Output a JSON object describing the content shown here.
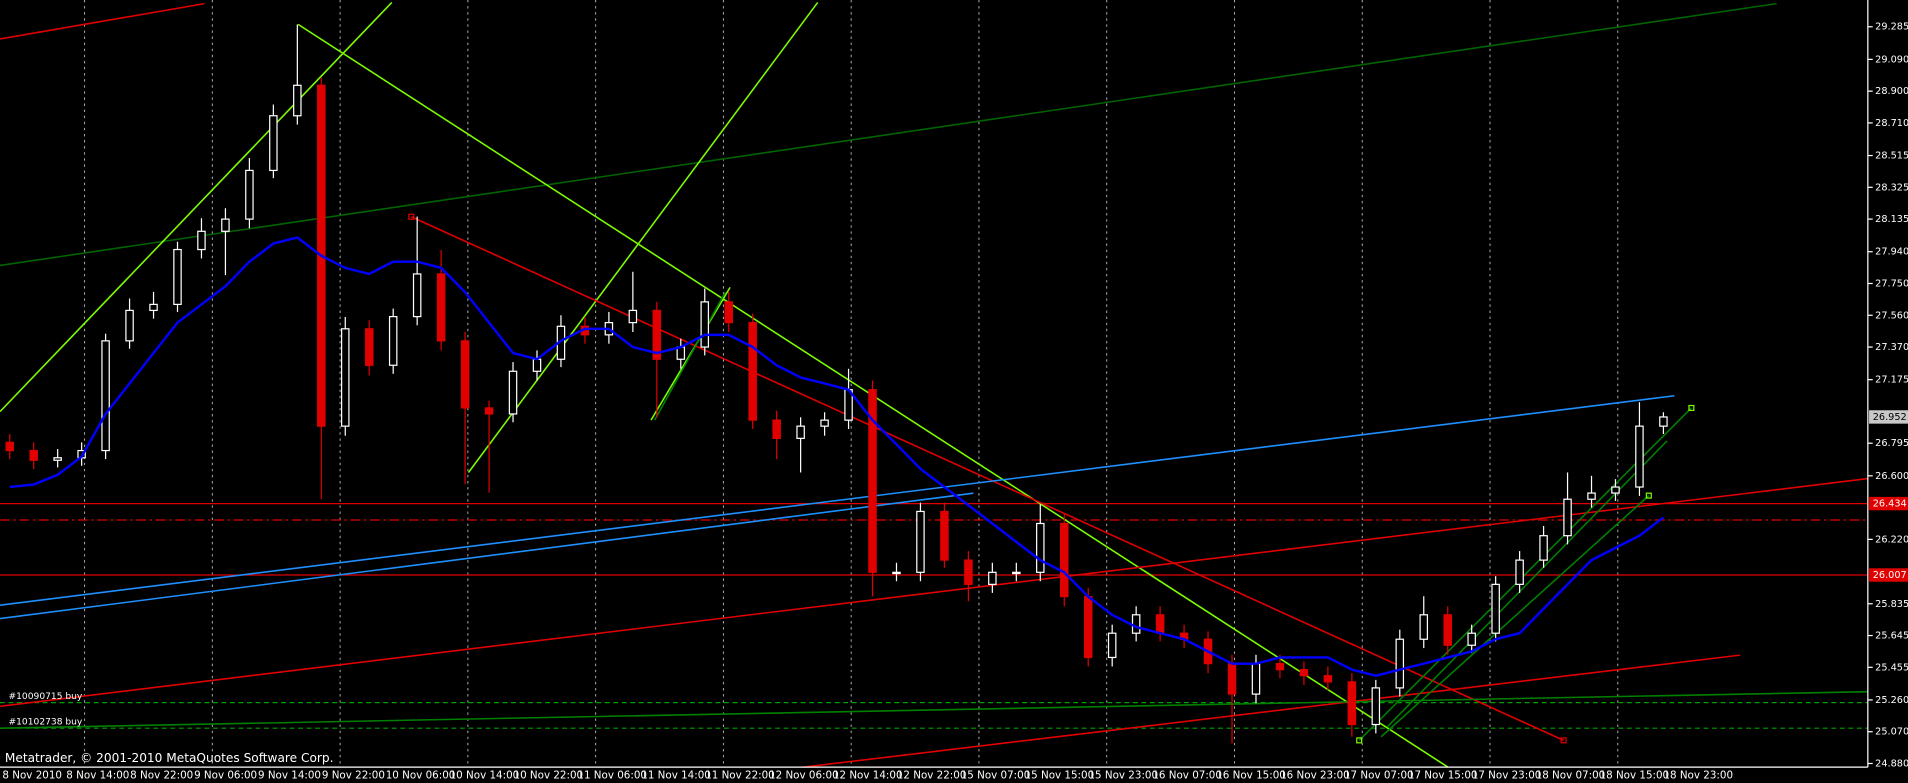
{
  "chart_data": {
    "type": "candlestick",
    "footer": "Metatrader, © 2001-2010 MetaQuotes Software Corp.",
    "time_labels": [
      "8 Nov 2010",
      "8 Nov 14:00",
      "8 Nov 22:00",
      "9 Nov 06:00",
      "9 Nov 14:00",
      "9 Nov 22:00",
      "10 Nov 06:00",
      "10 Nov 14:00",
      "10 Nov 22:00",
      "11 Nov 06:00",
      "11 Nov 14:00",
      "11 Nov 22:00",
      "12 Nov 06:00",
      "12 Nov 14:00",
      "12 Nov 22:00",
      "15 Nov 07:00",
      "15 Nov 15:00",
      "15 Nov 23:00",
      "16 Nov 07:00",
      "16 Nov 15:00",
      "16 Nov 23:00",
      "17 Nov 07:00",
      "17 Nov 15:00",
      "17 Nov 23:00",
      "18 Nov 07:00",
      "18 Nov 15:00",
      "18 Nov 23:00"
    ],
    "ylim": [
      24.858,
      29.445
    ],
    "yticks": [
      29.285,
      {
        "value": 29.09,
        "label": "29.090"
      },
      {
        "value": 28.9,
        "label": "28.900"
      },
      {
        "value": 28.71,
        "label": "28.710"
      },
      28.515,
      28.325,
      28.135,
      {
        "value": 27.94,
        "label": "27.940"
      },
      {
        "value": 27.75,
        "label": "27.750"
      },
      {
        "value": 27.56,
        "label": "27.560"
      },
      {
        "value": 27.37,
        "label": "27.370"
      },
      27.175,
      26.795,
      {
        "value": 26.6,
        "label": "26.600"
      },
      {
        "value": 26.22,
        "label": "26.220"
      },
      25.835,
      25.645,
      25.455,
      {
        "value": 25.26,
        "label": "25.260"
      },
      {
        "value": 25.07,
        "label": "25.070"
      },
      {
        "value": 24.88,
        "label": "24.880"
      }
    ],
    "bull_color": "#ffffff",
    "bear_color": "#e00000",
    "ohlc": [
      [
        26.8,
        26.85,
        26.7,
        26.751
      ],
      [
        26.751,
        26.8,
        26.64,
        26.693
      ],
      [
        26.693,
        26.76,
        26.65,
        26.708
      ],
      [
        26.708,
        26.8,
        26.66,
        26.751
      ],
      [
        26.751,
        27.45,
        26.7,
        27.407
      ],
      [
        27.407,
        27.66,
        27.36,
        27.589
      ],
      [
        27.589,
        27.7,
        27.54,
        27.625
      ],
      [
        27.625,
        28.0,
        27.58,
        27.953
      ],
      [
        27.953,
        28.14,
        27.9,
        28.062
      ],
      [
        28.062,
        28.2,
        27.8,
        28.135
      ],
      [
        28.135,
        28.5,
        28.08,
        28.426
      ],
      [
        28.426,
        28.82,
        28.38,
        28.753
      ],
      [
        28.753,
        29.299,
        28.7,
        28.935
      ],
      [
        28.935,
        28.98,
        26.46,
        26.897
      ],
      [
        26.897,
        27.55,
        26.84,
        27.479
      ],
      [
        27.479,
        27.53,
        27.2,
        27.261
      ],
      [
        27.261,
        27.6,
        27.21,
        27.552
      ],
      [
        27.552,
        28.15,
        27.5,
        27.807
      ],
      [
        27.807,
        27.95,
        27.35,
        27.407
      ],
      [
        27.407,
        27.46,
        26.55,
        27.006
      ],
      [
        27.006,
        27.05,
        26.5,
        26.97
      ],
      [
        26.97,
        27.28,
        26.92,
        27.225
      ],
      [
        27.225,
        27.35,
        27.17,
        27.297
      ],
      [
        27.297,
        27.56,
        27.25,
        27.494
      ],
      [
        27.494,
        27.55,
        27.39,
        27.443
      ],
      [
        27.443,
        27.58,
        27.39,
        27.516
      ],
      [
        27.516,
        27.82,
        27.46,
        27.589
      ],
      [
        27.589,
        27.64,
        26.95,
        27.297
      ],
      [
        27.297,
        27.42,
        27.24,
        27.37
      ],
      [
        27.37,
        27.72,
        27.32,
        27.64
      ],
      [
        27.64,
        27.7,
        27.46,
        27.516
      ],
      [
        27.516,
        27.57,
        26.88,
        26.933
      ],
      [
        26.933,
        26.99,
        26.7,
        26.824
      ],
      [
        26.824,
        26.95,
        26.62,
        26.897
      ],
      [
        26.897,
        26.98,
        26.84,
        26.933
      ],
      [
        26.933,
        27.24,
        26.88,
        27.115
      ],
      [
        27.115,
        27.17,
        25.88,
        26.023
      ],
      [
        26.023,
        26.08,
        25.97,
        26.023
      ],
      [
        26.023,
        26.44,
        25.97,
        26.387
      ],
      [
        26.387,
        26.44,
        26.05,
        26.096
      ],
      [
        26.096,
        26.15,
        25.85,
        25.951
      ],
      [
        25.951,
        26.08,
        25.9,
        26.023
      ],
      [
        26.023,
        26.08,
        25.97,
        26.023
      ],
      [
        26.023,
        26.43,
        25.97,
        26.315
      ],
      [
        26.315,
        26.37,
        25.82,
        25.878
      ],
      [
        25.878,
        25.93,
        25.46,
        25.514
      ],
      [
        25.514,
        25.71,
        25.46,
        25.659
      ],
      [
        25.659,
        25.82,
        25.61,
        25.769
      ],
      [
        25.769,
        25.82,
        25.61,
        25.659
      ],
      [
        25.659,
        25.71,
        25.57,
        25.623
      ],
      [
        25.623,
        25.67,
        25.42,
        25.477
      ],
      [
        25.477,
        25.53,
        25.0,
        25.295
      ],
      [
        25.295,
        25.53,
        25.24,
        25.477
      ],
      [
        25.477,
        25.53,
        25.39,
        25.441
      ],
      [
        25.441,
        25.49,
        25.35,
        25.405
      ],
      [
        25.405,
        25.46,
        25.32,
        25.368
      ],
      [
        25.368,
        25.42,
        25.04,
        25.113
      ],
      [
        25.113,
        25.38,
        25.06,
        25.332
      ],
      [
        25.332,
        25.68,
        25.28,
        25.623
      ],
      [
        25.623,
        25.88,
        25.57,
        25.769
      ],
      [
        25.769,
        25.82,
        25.53,
        25.587
      ],
      [
        25.587,
        25.71,
        25.54,
        25.659
      ],
      [
        25.659,
        26.0,
        25.61,
        25.951
      ],
      [
        25.951,
        26.15,
        25.9,
        26.096
      ],
      [
        26.096,
        26.3,
        26.05,
        26.242
      ],
      [
        26.242,
        26.62,
        26.19,
        26.46
      ],
      [
        26.46,
        26.6,
        26.41,
        26.497
      ],
      [
        26.497,
        26.58,
        26.45,
        26.533
      ],
      [
        26.533,
        27.04,
        26.48,
        26.897
      ],
      [
        26.897,
        26.98,
        26.85,
        26.952
      ]
    ],
    "moving_average": {
      "color": "#0000ff",
      "values": [
        26.533,
        26.548,
        26.606,
        26.715,
        26.97,
        27.152,
        27.334,
        27.516,
        27.625,
        27.734,
        27.88,
        27.989,
        28.025,
        27.916,
        27.843,
        27.807,
        27.88,
        27.88,
        27.843,
        27.698,
        27.516,
        27.334,
        27.297,
        27.407,
        27.479,
        27.479,
        27.37,
        27.334,
        27.37,
        27.443,
        27.443,
        27.37,
        27.261,
        27.188,
        27.152,
        27.115,
        26.933,
        26.788,
        26.642,
        26.533,
        26.424,
        26.315,
        26.205,
        26.096,
        26.023,
        25.878,
        25.769,
        25.696,
        25.659,
        25.623,
        25.55,
        25.477,
        25.477,
        25.514,
        25.514,
        25.514,
        25.441,
        25.405,
        25.441,
        25.477,
        25.514,
        25.55,
        25.623,
        25.659,
        25.805,
        25.951,
        26.096,
        26.169,
        26.242,
        26.351
      ]
    },
    "price_levels": [
      {
        "value": 26.952,
        "color": "#c8c8c8",
        "text_color": "#000000",
        "line": false
      },
      {
        "value": 26.434,
        "color": "#e00000",
        "text_color": "#ffffff",
        "line": true
      },
      {
        "value": 26.007,
        "color": "#e00000",
        "text_color": "#ffffff",
        "line": true
      }
    ],
    "dashdot_levels": [
      {
        "value": 26.336,
        "color": "#e00000"
      }
    ],
    "orders": [
      {
        "name": "#10090715 buy",
        "value": 25.244,
        "color": "#00a000"
      },
      {
        "name": "#10102738 buy",
        "value": 25.091,
        "color": "#00a000"
      }
    ]
  }
}
